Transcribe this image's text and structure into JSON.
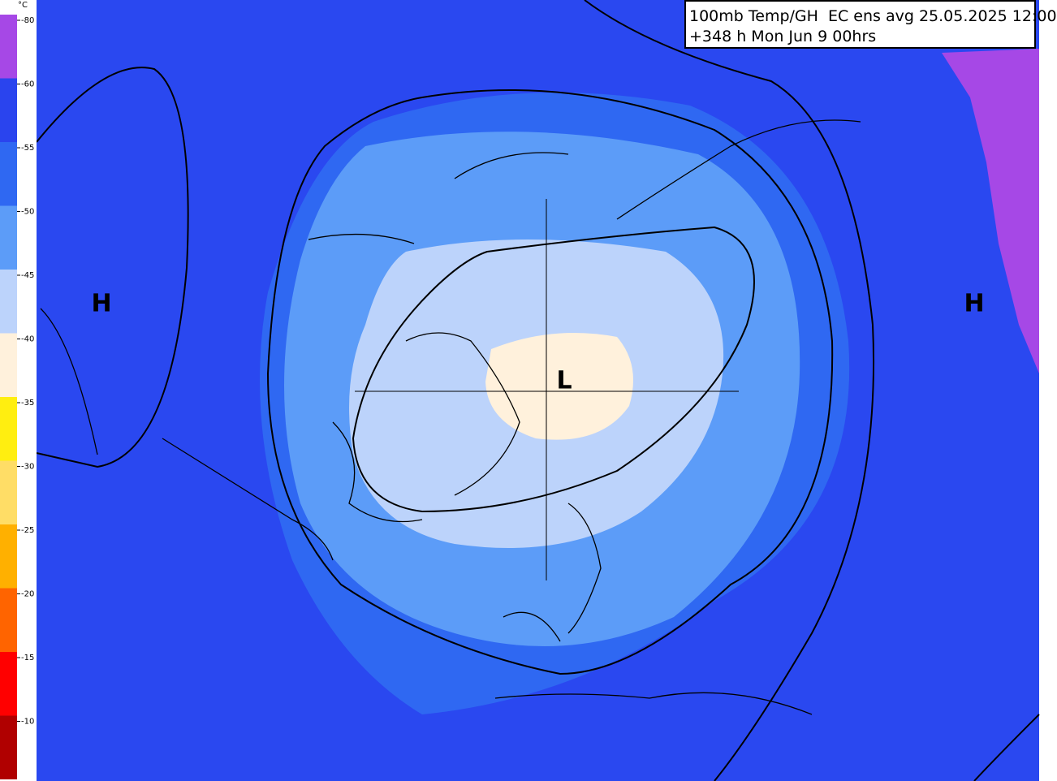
{
  "header": {
    "line1": "100mb Temp/GH  EC ens avg 25.05.2025 12:00",
    "line2": "+348 h Mon Jun 9 00hrs"
  },
  "legend": {
    "unit": "°C",
    "entries": [
      {
        "label": "-80",
        "color": "#a648e6"
      },
      {
        "label": "-60",
        "color": "#2a44ee"
      },
      {
        "label": "-55",
        "color": "#2f68f2"
      },
      {
        "label": "-50",
        "color": "#5c9cf8"
      },
      {
        "label": "-45",
        "color": "#bcd3fb"
      },
      {
        "label": "-40",
        "color": "#fff1dc"
      },
      {
        "label": "-35",
        "color": "#ffee10"
      },
      {
        "label": "-30",
        "color": "#ffdd66"
      },
      {
        "label": "-25",
        "color": "#ffb000"
      },
      {
        "label": "-20",
        "color": "#ff6400"
      },
      {
        "label": "-15",
        "color": "#ff0000"
      },
      {
        "label": "-10",
        "color": "#b00000"
      }
    ]
  },
  "map": {
    "markers": [
      {
        "label": "H"
      },
      {
        "label": "L"
      },
      {
        "label": "H"
      }
    ]
  }
}
